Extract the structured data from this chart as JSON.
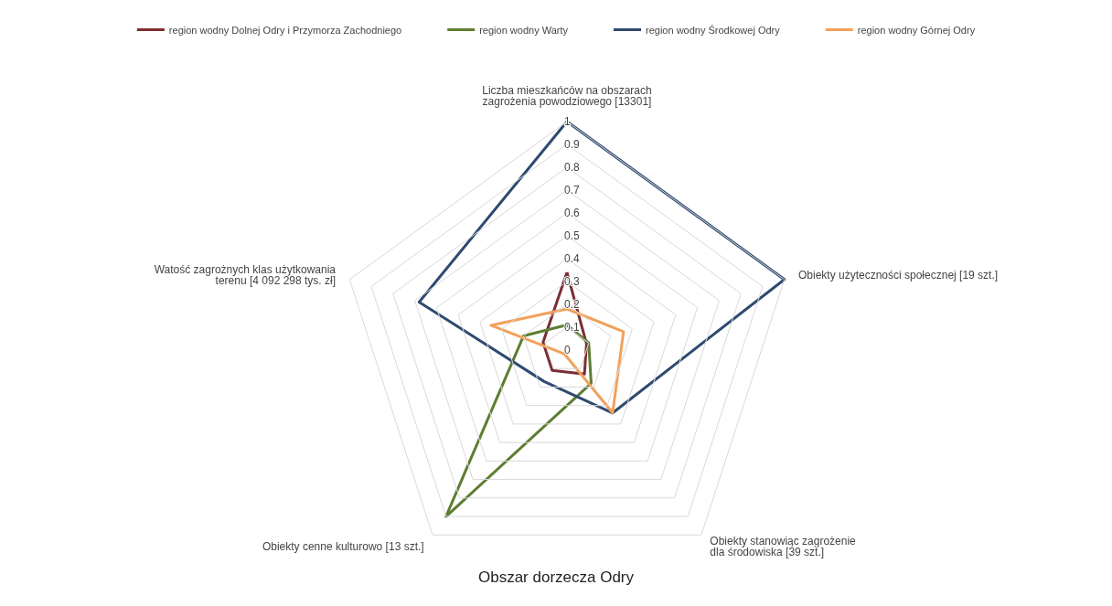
{
  "chart_data": {
    "type": "radar",
    "title": "Obszar dorzecza Odry",
    "categories": [
      "Liczba mieszkańców na obszarach zagrożenia powodziowego [13301]",
      "Obiekty użyteczności społecznej [19 szt.]",
      "Obiekty stanowiąc zagrożenie dla środowiska [39 szt.]",
      "Obiekty cenne kulturowo [13 szt.]",
      "Watość zagrożnych klas użytkowania terenu [4 092 298 tys. zł]"
    ],
    "series": [
      {
        "name": "region wodny Dolnej Odry i Przymorza Zachodniego",
        "color": "#7b2e33",
        "values": [
          0.34,
          0.09,
          0.13,
          0.11,
          0.11
        ]
      },
      {
        "name": "region wodny Warty",
        "color": "#5e7d32",
        "values": [
          0.11,
          0.1,
          0.18,
          0.9,
          0.2
        ]
      },
      {
        "name": "region wodny Środkowej Odry",
        "color": "#2f4a6f",
        "values": [
          1,
          1,
          0.34,
          0.17,
          0.68
        ]
      },
      {
        "name": "region wodny Górnej Odry",
        "color": "#f2a15a",
        "values": [
          0.18,
          0.26,
          0.34,
          0.02,
          0.35
        ]
      }
    ],
    "ylim": [
      0,
      1
    ],
    "yticks": [
      0,
      0.1,
      0.2,
      0.3,
      0.4,
      0.5,
      0.6,
      0.7,
      0.8,
      0.9,
      1
    ],
    "grid": true,
    "legend": "top",
    "marker": "none"
  }
}
